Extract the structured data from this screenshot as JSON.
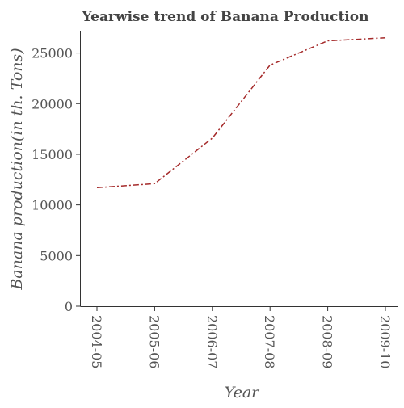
{
  "chart_data": {
    "type": "line",
    "title": "Yearwise trend of Banana Production",
    "xlabel": "Year",
    "ylabel": "Banana production(in th. Tons)",
    "categories": [
      "2004-05",
      "2005-06",
      "2006-07",
      "2007-08",
      "2008-09",
      "2009-10"
    ],
    "series": [
      {
        "values": [
          11700,
          12100,
          16600,
          23800,
          26200,
          26500
        ],
        "color": "#a52a2a",
        "line_style": "dash-dot"
      }
    ],
    "y_ticks": [
      0,
      5000,
      10000,
      15000,
      20000,
      25000
    ],
    "y_tick_labels": [
      "0",
      "5000",
      "10000",
      "15000",
      "20000",
      "25000"
    ],
    "ylim": [
      0,
      27200
    ],
    "grid": false,
    "legend": "none"
  }
}
